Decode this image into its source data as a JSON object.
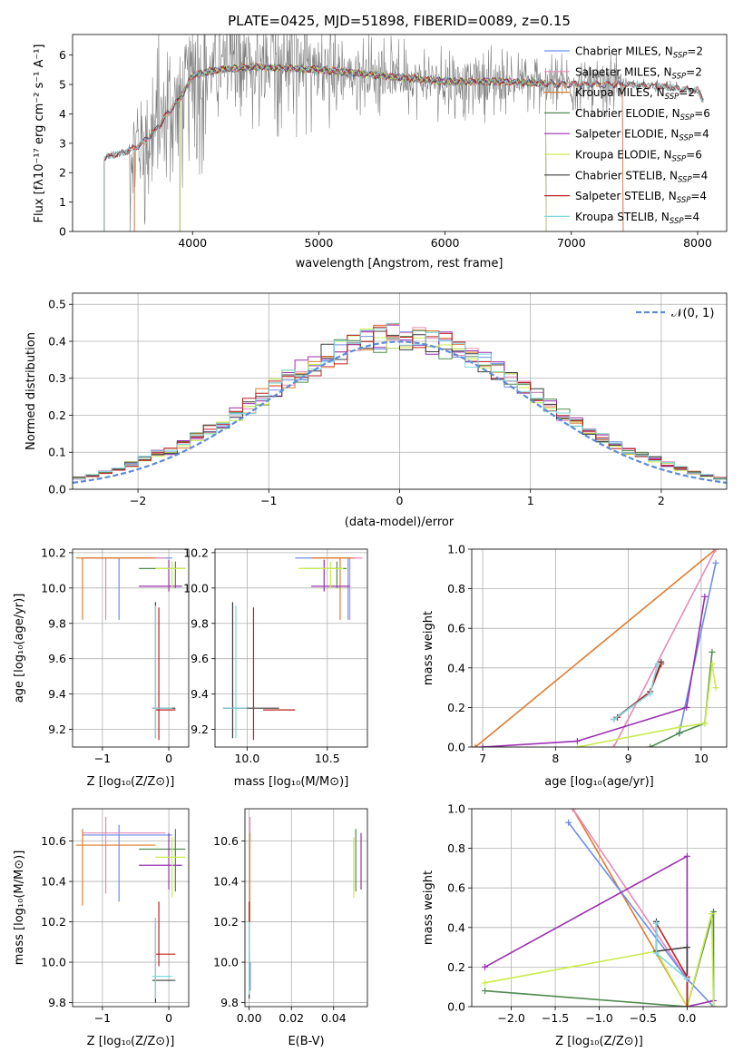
{
  "title": "PLATE=0425, MJD=51898, FIBERID=0089, z=0.15",
  "colors": {
    "chabrier_miles": "#6a8ee6",
    "salpeter_miles": "#e68ab8",
    "kroupa_miles": "#e07b2e",
    "chabrier_elodie": "#4f8a4f",
    "salpeter_elodie": "#9a2fb0",
    "kroupa_elodie": "#c9ec4c",
    "chabrier_stelib": "#3c3c3c",
    "salpeter_stelib": "#c01f1f",
    "kroupa_stelib": "#7fd8e0",
    "data": "#808080",
    "gaussian": "#5b8bd9"
  },
  "chart_data": [
    {
      "id": "spectrum",
      "type": "line",
      "title": "PLATE=0425, MJD=51898, FIBERID=0089, z=0.15",
      "xlabel": "wavelength [Angstrom, rest frame]",
      "ylabel": "Flux [fλ10⁻¹⁷ erg cm⁻² s⁻¹ A⁻¹]",
      "xlim": [
        3050,
        8230
      ],
      "ylim": [
        0,
        6.7
      ],
      "xticks": [
        "4000",
        "5000",
        "6000",
        "7000",
        "8000"
      ],
      "yticks": [
        "0",
        "1",
        "2",
        "3",
        "4",
        "5",
        "6"
      ],
      "grid": false,
      "legend_position": "top-right",
      "legend": [
        {
          "label": "Chabrier MILES, N",
          "sub": "SSP",
          "suffix": "=2",
          "color": "#6a8ee6"
        },
        {
          "label": "Salpeter MILES, N",
          "sub": "SSP",
          "suffix": "=2",
          "color": "#e68ab8"
        },
        {
          "label": "Kroupa MILES, N",
          "sub": "SSP",
          "suffix": "=2",
          "color": "#e07b2e"
        },
        {
          "label": "Chabrier ELODIE, N",
          "sub": "SSP",
          "suffix": "=6",
          "color": "#4f8a4f"
        },
        {
          "label": "Salpeter ELODIE, N",
          "sub": "SSP",
          "suffix": "=4",
          "color": "#9a2fb0"
        },
        {
          "label": "Kroupa ELODIE, N",
          "sub": "SSP",
          "suffix": "=6",
          "color": "#c9ec4c"
        },
        {
          "label": "Chabrier STELIB, N",
          "sub": "SSP",
          "suffix": "=4",
          "color": "#3c3c3c"
        },
        {
          "label": "Salpeter STELIB, N",
          "sub": "SSP",
          "suffix": "=4",
          "color": "#c01f1f"
        },
        {
          "label": "Kroupa STELIB, N",
          "sub": "SSP",
          "suffix": "=4",
          "color": "#7fd8e0"
        }
      ],
      "continuum": [
        [
          3300,
          2.5
        ],
        [
          3500,
          2.75
        ],
        [
          3600,
          3.0
        ],
        [
          3700,
          3.4
        ],
        [
          3800,
          4.0
        ],
        [
          3900,
          4.5
        ],
        [
          4000,
          5.3
        ],
        [
          4200,
          5.5
        ],
        [
          4500,
          5.6
        ],
        [
          5000,
          5.5
        ],
        [
          5500,
          5.3
        ],
        [
          6000,
          5.1
        ],
        [
          6500,
          5.1
        ],
        [
          7000,
          5.0
        ],
        [
          7500,
          5.0
        ],
        [
          8000,
          4.8
        ],
        [
          8050,
          4.4
        ]
      ]
    },
    {
      "id": "residuals",
      "type": "histogram",
      "xlabel": "(data-model)/error",
      "ylabel": "Normed distribution",
      "xlim": [
        -2.5,
        2.5
      ],
      "ylim": [
        0,
        0.53
      ],
      "xticks": [
        "−2",
        "−1",
        "0",
        "1",
        "2"
      ],
      "yticks": [
        "0.0",
        "0.1",
        "0.2",
        "0.3",
        "0.4",
        "0.5"
      ],
      "grid": true,
      "legend_position": "top-right",
      "gaussian_label": "𝒩(0, 1)",
      "bin_width": 0.1,
      "bin_start": -2.5
    },
    {
      "id": "age_vs_Z",
      "type": "scatter",
      "xlabel": "Z [log₁₀(Z/Z⊙)]",
      "ylabel": "age  [log₁₀(age/yr)]",
      "xlim": [
        -1.45,
        0.3
      ],
      "ylim": [
        9.1,
        10.22
      ],
      "xticks": [
        "−1",
        "0"
      ],
      "yticks": [
        "9.2",
        "9.4",
        "9.6",
        "9.8",
        "10.0",
        "10.2"
      ]
    },
    {
      "id": "age_vs_mass",
      "type": "scatter",
      "xlabel": "mass [log₁₀(M/M⊙)]",
      "ylabel": "",
      "xlim": [
        9.8,
        10.75
      ],
      "ylim": [
        9.1,
        10.22
      ],
      "xticks": [
        "10.0",
        "10.5"
      ],
      "yticks": [
        "9.2",
        "9.4",
        "9.6",
        "9.8",
        "10.0",
        "10.2"
      ]
    },
    {
      "id": "mass_weight_vs_age",
      "type": "line",
      "xlabel": "age  [log₁₀(age/yr)]",
      "ylabel": "mass weight",
      "xlim": [
        6.85,
        10.35
      ],
      "ylim": [
        0,
        1.0
      ],
      "xticks": [
        "7",
        "8",
        "9",
        "10"
      ],
      "yticks": [
        "0.0",
        "0.2",
        "0.4",
        "0.6",
        "0.8",
        "1.0"
      ]
    },
    {
      "id": "mass_vs_Z",
      "type": "scatter",
      "xlabel": "Z [log₁₀(Z/Z⊙)]",
      "ylabel": "mass [log₁₀(M/M⊙)]",
      "xlim": [
        -1.45,
        0.3
      ],
      "ylim": [
        9.78,
        10.76
      ],
      "xticks": [
        "−1",
        "0"
      ],
      "yticks": [
        "9.8",
        "10.0",
        "10.2",
        "10.4",
        "10.6"
      ]
    },
    {
      "id": "mass_vs_ebv",
      "type": "scatter",
      "xlabel": "E(B-V)",
      "ylabel": "",
      "xlim": [
        -0.002,
        0.056
      ],
      "ylim": [
        9.78,
        10.76
      ],
      "xticks": [
        "0.00",
        "0.02",
        "0.04"
      ],
      "yticks": [
        "9.8",
        "10.0",
        "10.2",
        "10.4",
        "10.6"
      ]
    },
    {
      "id": "mass_weight_vs_Z",
      "type": "line",
      "xlabel": "Z [log₁₀(Z/Z⊙)]",
      "ylabel": "mass weight",
      "xlim": [
        -2.45,
        0.45
      ],
      "ylim": [
        0,
        1.0
      ],
      "xticks": [
        "−2.0",
        "−1.5",
        "−1.0",
        "−0.5",
        "0.0"
      ],
      "yticks": [
        "0.0",
        "0.2",
        "0.4",
        "0.6",
        "0.8",
        "1.0"
      ]
    }
  ],
  "fits": [
    {
      "key": "chabrier_miles",
      "Z": -0.75,
      "age": 10.17,
      "Zlo": -1.3,
      "Zhi": 0.05,
      "alo": 9.82,
      "ahi": 10.17,
      "mass": 10.63,
      "mlo": 10.3,
      "mhi": 10.68,
      "mxlo": 10.3,
      "mxhi": 10.68,
      "ebv": 0.0005,
      "eblo": 9.86,
      "ebhi": 10.0
    },
    {
      "key": "salpeter_miles",
      "Z": -0.95,
      "age": 10.17,
      "Zlo": -1.3,
      "Zhi": -0.05,
      "alo": 9.82,
      "ahi": 10.17,
      "mass": 10.64,
      "mlo": 10.34,
      "mhi": 10.72,
      "mxlo": 10.4,
      "mxhi": 10.72,
      "ebv": 0.0004,
      "eblo": 10.6,
      "ebhi": 10.72
    },
    {
      "key": "kroupa_miles",
      "Z": -1.3,
      "age": 10.17,
      "Zlo": -1.4,
      "Zhi": -0.2,
      "alo": 9.82,
      "ahi": 10.17,
      "mass": 10.58,
      "mlo": 10.28,
      "mhi": 10.66,
      "mxlo": 10.4,
      "mxhi": 10.66,
      "ebv": 0.0003,
      "eblo": 10.2,
      "ebhi": 10.64
    },
    {
      "key": "chabrier_elodie",
      "Z": 0.1,
      "age": 10.11,
      "Zlo": -0.45,
      "Zhi": 0.25,
      "alo": 10.0,
      "ahi": 10.15,
      "mass": 10.56,
      "mlo": 10.35,
      "mhi": 10.66,
      "mxlo": 10.35,
      "mxhi": 10.62,
      "ebv": 0.0505,
      "eblo": 10.35,
      "ebhi": 10.66
    },
    {
      "key": "salpeter_elodie",
      "Z": 0.0,
      "age": 10.01,
      "Zlo": -0.45,
      "Zhi": 0.2,
      "alo": 9.98,
      "ahi": 10.16,
      "mass": 10.48,
      "mlo": 10.36,
      "mhi": 10.64,
      "mxlo": 10.4,
      "mxhi": 10.64,
      "ebv": 0.053,
      "eblo": 10.36,
      "ebhi": 10.64
    },
    {
      "key": "kroupa_elodie",
      "Z": 0.05,
      "age": 10.11,
      "Zlo": -0.2,
      "Zhi": 0.25,
      "alo": 10.0,
      "ahi": 10.15,
      "mass": 10.52,
      "mlo": 10.32,
      "mhi": 10.62,
      "mxlo": 10.32,
      "mxhi": 10.6,
      "ebv": 0.0495,
      "eblo": 10.32,
      "ebhi": 10.62
    },
    {
      "key": "chabrier_stelib",
      "Z": -0.2,
      "age": 9.32,
      "Zlo": -0.25,
      "Zhi": 0.1,
      "alo": 9.15,
      "ahi": 9.92,
      "mass": 9.91,
      "mlo": 9.8,
      "mhi": 10.22,
      "mxlo": 9.85,
      "mxhi": 10.2,
      "ebv": 0.0,
      "eblo": 9.82,
      "ebhi": 10.05
    },
    {
      "key": "salpeter_stelib",
      "Z": -0.15,
      "age": 9.31,
      "Zlo": -0.2,
      "Zhi": 0.1,
      "alo": 9.14,
      "ahi": 9.89,
      "mass": 10.04,
      "mlo": 9.98,
      "mhi": 10.3,
      "mxlo": 10.1,
      "mxhi": 10.3,
      "ebv": 0.0,
      "eblo": 10.05,
      "ebhi": 10.3
    },
    {
      "key": "kroupa_stelib",
      "Z": -0.2,
      "age": 9.32,
      "Zlo": -0.25,
      "Zhi": 0.05,
      "alo": 9.15,
      "ahi": 9.9,
      "mass": 9.93,
      "mlo": 9.82,
      "mhi": 10.22,
      "mxlo": 9.85,
      "mxhi": 10.0,
      "ebv": 0.0,
      "eblo": 9.84,
      "ebhi": 10.2
    }
  ],
  "weights_age": [
    {
      "key": "kroupa_miles",
      "pts": [
        [
          6.9,
          0.0
        ],
        [
          10.2,
          1.0
        ]
      ]
    },
    {
      "key": "salpeter_miles",
      "pts": [
        [
          8.8,
          0.0
        ],
        [
          10.2,
          1.0
        ]
      ]
    },
    {
      "key": "chabrier_miles",
      "pts": [
        [
          9.7,
          0.07
        ],
        [
          10.2,
          0.93
        ]
      ]
    },
    {
      "key": "salpeter_elodie",
      "pts": [
        [
          7.0,
          0.0
        ],
        [
          8.3,
          0.03
        ],
        [
          9.8,
          0.2
        ],
        [
          10.05,
          0.76
        ]
      ]
    },
    {
      "key": "chabrier_elodie",
      "pts": [
        [
          9.3,
          0.0
        ],
        [
          9.7,
          0.07
        ],
        [
          10.05,
          0.12
        ],
        [
          10.15,
          0.48
        ]
      ]
    },
    {
      "key": "kroupa_elodie",
      "pts": [
        [
          8.3,
          0.0
        ],
        [
          9.7,
          0.1
        ],
        [
          10.05,
          0.12
        ],
        [
          10.15,
          0.42
        ],
        [
          10.2,
          0.3
        ]
      ]
    },
    {
      "key": "chabrier_stelib",
      "pts": [
        [
          8.8,
          0.14
        ],
        [
          9.3,
          0.28
        ],
        [
          9.45,
          0.43
        ]
      ]
    },
    {
      "key": "salpeter_stelib",
      "pts": [
        [
          8.85,
          0.15
        ],
        [
          9.3,
          0.28
        ],
        [
          9.45,
          0.42
        ]
      ]
    },
    {
      "key": "kroupa_stelib",
      "pts": [
        [
          8.8,
          0.14
        ],
        [
          9.3,
          0.27
        ],
        [
          9.4,
          0.42
        ]
      ]
    }
  ],
  "weights_Z": [
    {
      "key": "kroupa_miles",
      "pts": [
        [
          -1.3,
          1.0
        ],
        [
          0.0,
          0.0
        ]
      ]
    },
    {
      "key": "salpeter_miles",
      "pts": [
        [
          -1.3,
          1.0
        ],
        [
          0.0,
          0.14
        ]
      ]
    },
    {
      "key": "chabrier_miles",
      "pts": [
        [
          -1.35,
          0.93
        ],
        [
          0.0,
          0.14
        ],
        [
          0.3,
          0.0
        ]
      ]
    },
    {
      "key": "salpeter_elodie",
      "pts": [
        [
          -2.3,
          0.2
        ],
        [
          0.0,
          0.76
        ],
        [
          0.0,
          0.0
        ],
        [
          0.3,
          0.03
        ]
      ]
    },
    {
      "key": "chabrier_elodie",
      "pts": [
        [
          -2.3,
          0.08
        ],
        [
          0.0,
          0.0
        ],
        [
          0.3,
          0.48
        ],
        [
          0.3,
          0.0
        ]
      ]
    },
    {
      "key": "kroupa_elodie",
      "pts": [
        [
          -2.3,
          0.12
        ],
        [
          -0.35,
          0.28
        ],
        [
          0.0,
          0.0
        ],
        [
          0.28,
          0.47
        ],
        [
          0.3,
          0.0
        ]
      ]
    },
    {
      "key": "chabrier_stelib",
      "pts": [
        [
          -0.35,
          0.43
        ],
        [
          -0.35,
          0.28
        ],
        [
          0.0,
          0.3
        ],
        [
          0.0,
          0.0
        ]
      ]
    },
    {
      "key": "salpeter_stelib",
      "pts": [
        [
          -0.35,
          0.42
        ],
        [
          0.0,
          0.15
        ],
        [
          0.0,
          0.0
        ]
      ]
    },
    {
      "key": "kroupa_stelib",
      "pts": [
        [
          -0.35,
          0.42
        ],
        [
          -0.35,
          0.27
        ],
        [
          0.0,
          0.14
        ]
      ]
    }
  ]
}
